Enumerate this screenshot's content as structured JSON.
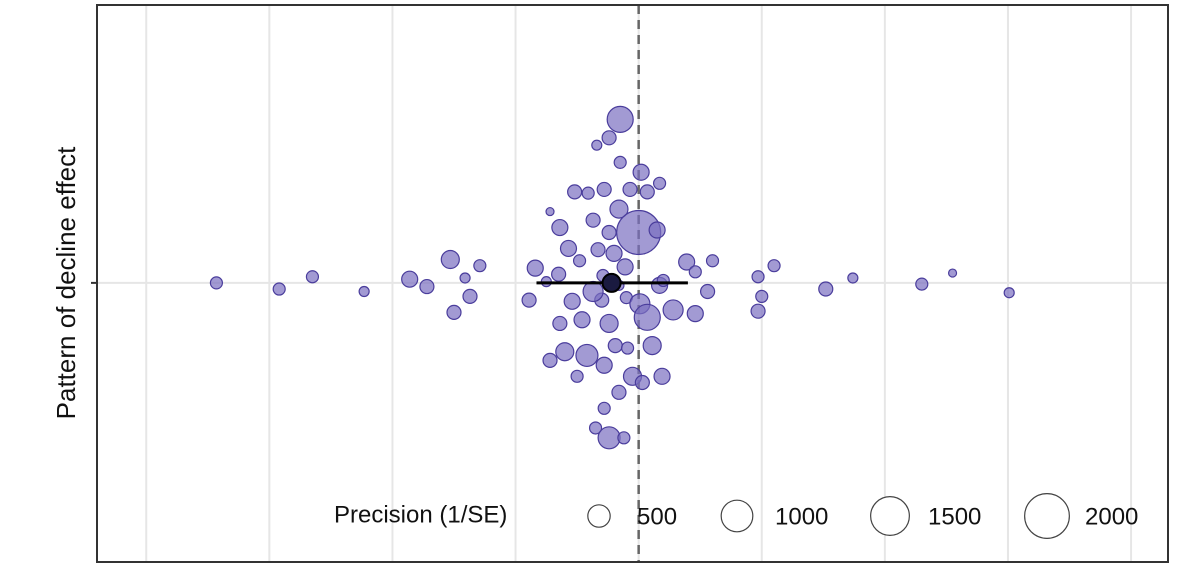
{
  "chart_data": {
    "type": "bubble",
    "y_label": "Pattern of decline effect",
    "xlim": [
      -44,
      43
    ],
    "ylim": [
      -22.7,
      22.6
    ],
    "xticks": [
      -40,
      -30,
      -20,
      -10,
      0,
      10,
      20,
      30,
      40
    ],
    "yticks": [
      0
    ],
    "grid": true,
    "vline": 0,
    "series": [
      {
        "color": "#7b6fc0",
        "x": [
          -34.3,
          -29.2,
          -26.5,
          -22.3,
          -18.6,
          -17.2,
          -15.3,
          -14.1,
          -12.9,
          -13.7,
          -15.0,
          -8.4,
          -7.2,
          -6.4,
          -5.7,
          -4.8,
          -6.5,
          -8.9,
          -7.5,
          -5.4,
          -6.4,
          -4.6,
          -3.0,
          -2.4,
          -5.2,
          -4.1,
          -2.8,
          -3.7,
          -3.3,
          -2.4,
          -1.6,
          -0.7,
          0.7,
          1.7,
          0.2,
          -1.5,
          -2.4,
          -3.4,
          -1.5,
          0,
          1.5,
          -2.0,
          -1.1,
          -2.9,
          -3.7,
          -1.6,
          -1.0,
          0.1,
          0.7,
          1.7,
          2.0,
          2.8,
          4.6,
          3.9,
          4.6,
          6.0,
          5.6,
          9.7,
          11.0,
          10.0,
          9.7,
          15.2,
          17.4,
          23.0,
          25.5,
          30.1,
          -6.0,
          -4.2,
          -7.2,
          -1.9,
          -0.9,
          1.1,
          -2.8,
          -5.0,
          -0.5,
          0.3,
          1.9,
          -1.6,
          -2.8,
          -3.5,
          -2.4,
          -1.2
        ],
        "y": [
          0,
          -0.5,
          0.5,
          -0.7,
          0.3,
          -0.3,
          1.9,
          0.4,
          1.4,
          -1.1,
          -2.4,
          1.2,
          5.8,
          4.5,
          2.8,
          1.8,
          0.7,
          -1.4,
          0.1,
          -1.5,
          -3.3,
          -3.0,
          -1.4,
          -3.3,
          7.4,
          7.3,
          7.6,
          5.1,
          2.7,
          4.1,
          6.0,
          7.6,
          7.4,
          8.1,
          9.0,
          9.8,
          11.8,
          11.2,
          13.3,
          4.1,
          4.3,
          2.4,
          1.3,
          0.6,
          -0.7,
          -0.2,
          -1.2,
          -1.7,
          -2.8,
          -0.2,
          0.2,
          -2.2,
          -2.5,
          1.7,
          0.9,
          1.8,
          -0.7,
          0.5,
          1.4,
          -1.1,
          -2.3,
          -0.5,
          0.4,
          -0.1,
          0.8,
          -0.8,
          -5.6,
          -5.9,
          -6.3,
          -5.1,
          -5.3,
          -5.1,
          -6.7,
          -7.6,
          -7.6,
          -8.1,
          -7.6,
          -8.9,
          -10.2,
          -11.8,
          -12.6,
          -12.6
        ],
        "size": [
          144,
          144,
          144,
          100,
          256,
          196,
          324,
          100,
          144,
          196,
          196,
          256,
          64,
          256,
          256,
          144,
          196,
          196,
          100,
          256,
          196,
          256,
          196,
          324,
          196,
          144,
          196,
          196,
          196,
          196,
          324,
          196,
          196,
          144,
          256,
          144,
          196,
          100,
          676,
          1936,
          256,
          256,
          256,
          144,
          400,
          100,
          144,
          400,
          676,
          256,
          144,
          400,
          256,
          256,
          144,
          144,
          196,
          144,
          144,
          144,
          196,
          196,
          100,
          144,
          64,
          100,
          324,
          484,
          196,
          196,
          144,
          324,
          256,
          144,
          324,
          196,
          256,
          196,
          144,
          144,
          484,
          144
        ]
      }
    ],
    "estimate": {
      "x": -2.2,
      "y": 0,
      "ci_low": -8.3,
      "ci_high": 4.0,
      "color": "#1a1a40"
    },
    "size_legend": {
      "title": "Precision (1/SE)",
      "values": [
        500,
        1000,
        1500,
        2000
      ]
    }
  }
}
